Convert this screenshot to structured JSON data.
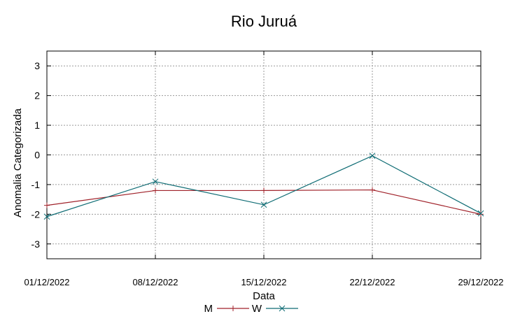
{
  "chart_data": {
    "type": "line",
    "title": "Rio Juruá",
    "xlabel": "Data",
    "ylabel": "Anomalia Categorizada",
    "categories": [
      "01/12/2022",
      "08/12/2022",
      "15/12/2022",
      "22/12/2022",
      "29/12/2022"
    ],
    "ylim": [
      -3.5,
      3.5
    ],
    "yticks": [
      -3,
      -2,
      -1,
      0,
      1,
      2,
      3
    ],
    "grid": true,
    "legend_position": "bottom",
    "series": [
      {
        "name": "M",
        "values": [
          -1.7,
          -1.2,
          -1.2,
          -1.18,
          -2.0
        ],
        "color": "#a0222a",
        "marker": "plus"
      },
      {
        "name": "W",
        "values": [
          -2.08,
          -0.9,
          -1.68,
          -0.03,
          -1.97
        ],
        "color": "#0d6b73",
        "marker": "x"
      }
    ]
  }
}
